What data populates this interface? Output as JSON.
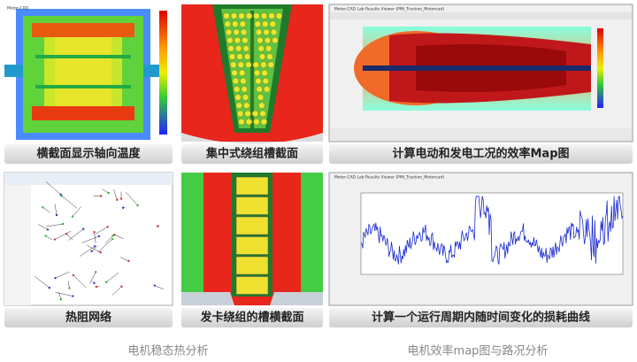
{
  "watermark": "Motor-CAD",
  "panels": [
    {
      "caption": "横截面显示轴向温度"
    },
    {
      "caption": "集中式绕组槽截面"
    },
    {
      "caption": "计算电动和发电工况的效率Map图",
      "window_title": "Motor-CAD Lab Results Viewer (PMi_Traction_Motorcad)"
    },
    {
      "caption": "热阻网络"
    },
    {
      "caption": "发卡绕组的槽横截面"
    },
    {
      "caption": "计算一个运行周期内随时间变化的损耗曲线",
      "window_title": "Motor-CAD Lab Results Viewer (PMi_Traction_Motorcad)"
    }
  ],
  "groups": [
    {
      "label": "电机稳态热分析"
    },
    {
      "label": "电机效率map图与路况分析"
    }
  ]
}
